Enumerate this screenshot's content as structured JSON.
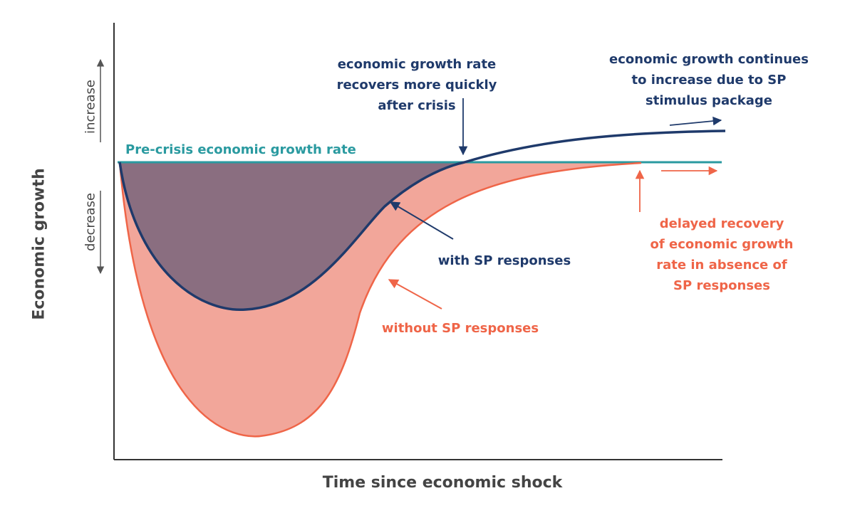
{
  "axes": {
    "y_label": "Economic growth",
    "x_label": "Time since economic shock",
    "increase_label": "increase",
    "decrease_label": "decrease"
  },
  "labels": {
    "pre_crisis": "Pre-crisis economic growth rate",
    "recovers_quickly": [
      "economic growth rate",
      "recovers more quickly",
      "after crisis"
    ],
    "continues_increase": [
      "economic growth continues",
      "to increase due to SP",
      "stimulus package"
    ],
    "with_sp": "with SP responses",
    "without_sp": "without SP responses",
    "delayed_recovery": [
      "delayed recovery",
      "of economic growth",
      "rate in absence of",
      "SP responses"
    ]
  },
  "colors": {
    "with_sp_line": "#1f3a6b",
    "without_sp_line": "#ef6548",
    "baseline": "#2a9aa0",
    "with_sp_fill": "#8a6e80",
    "without_sp_fill": "#f2a69a",
    "axis": "#333333"
  }
}
